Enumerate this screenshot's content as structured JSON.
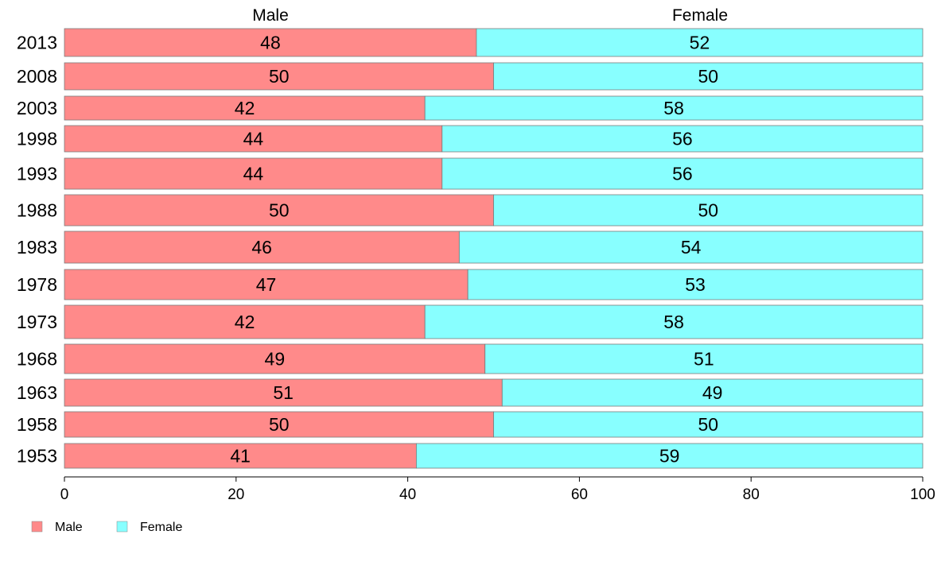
{
  "chart_data": {
    "type": "bar",
    "orientation": "horizontal",
    "stacked": true,
    "categories": [
      "2013",
      "2008",
      "2003",
      "1998",
      "1993",
      "1988",
      "1983",
      "1978",
      "1973",
      "1968",
      "1963",
      "1958",
      "1953"
    ],
    "series": [
      {
        "name": "Male",
        "values": [
          48,
          50,
          42,
          44,
          44,
          50,
          46,
          47,
          42,
          49,
          51,
          50,
          41
        ],
        "color": "#FF8A8A"
      },
      {
        "name": "Female",
        "values": [
          52,
          50,
          58,
          56,
          56,
          50,
          54,
          53,
          58,
          51,
          49,
          50,
          59
        ],
        "color": "#88FFFF"
      }
    ],
    "column_headers": [
      "Male",
      "Female"
    ],
    "xlim": [
      0,
      100
    ],
    "xticks": [
      0,
      20,
      40,
      60,
      80,
      100
    ],
    "grid": false,
    "legend_position": "bottom-left"
  }
}
